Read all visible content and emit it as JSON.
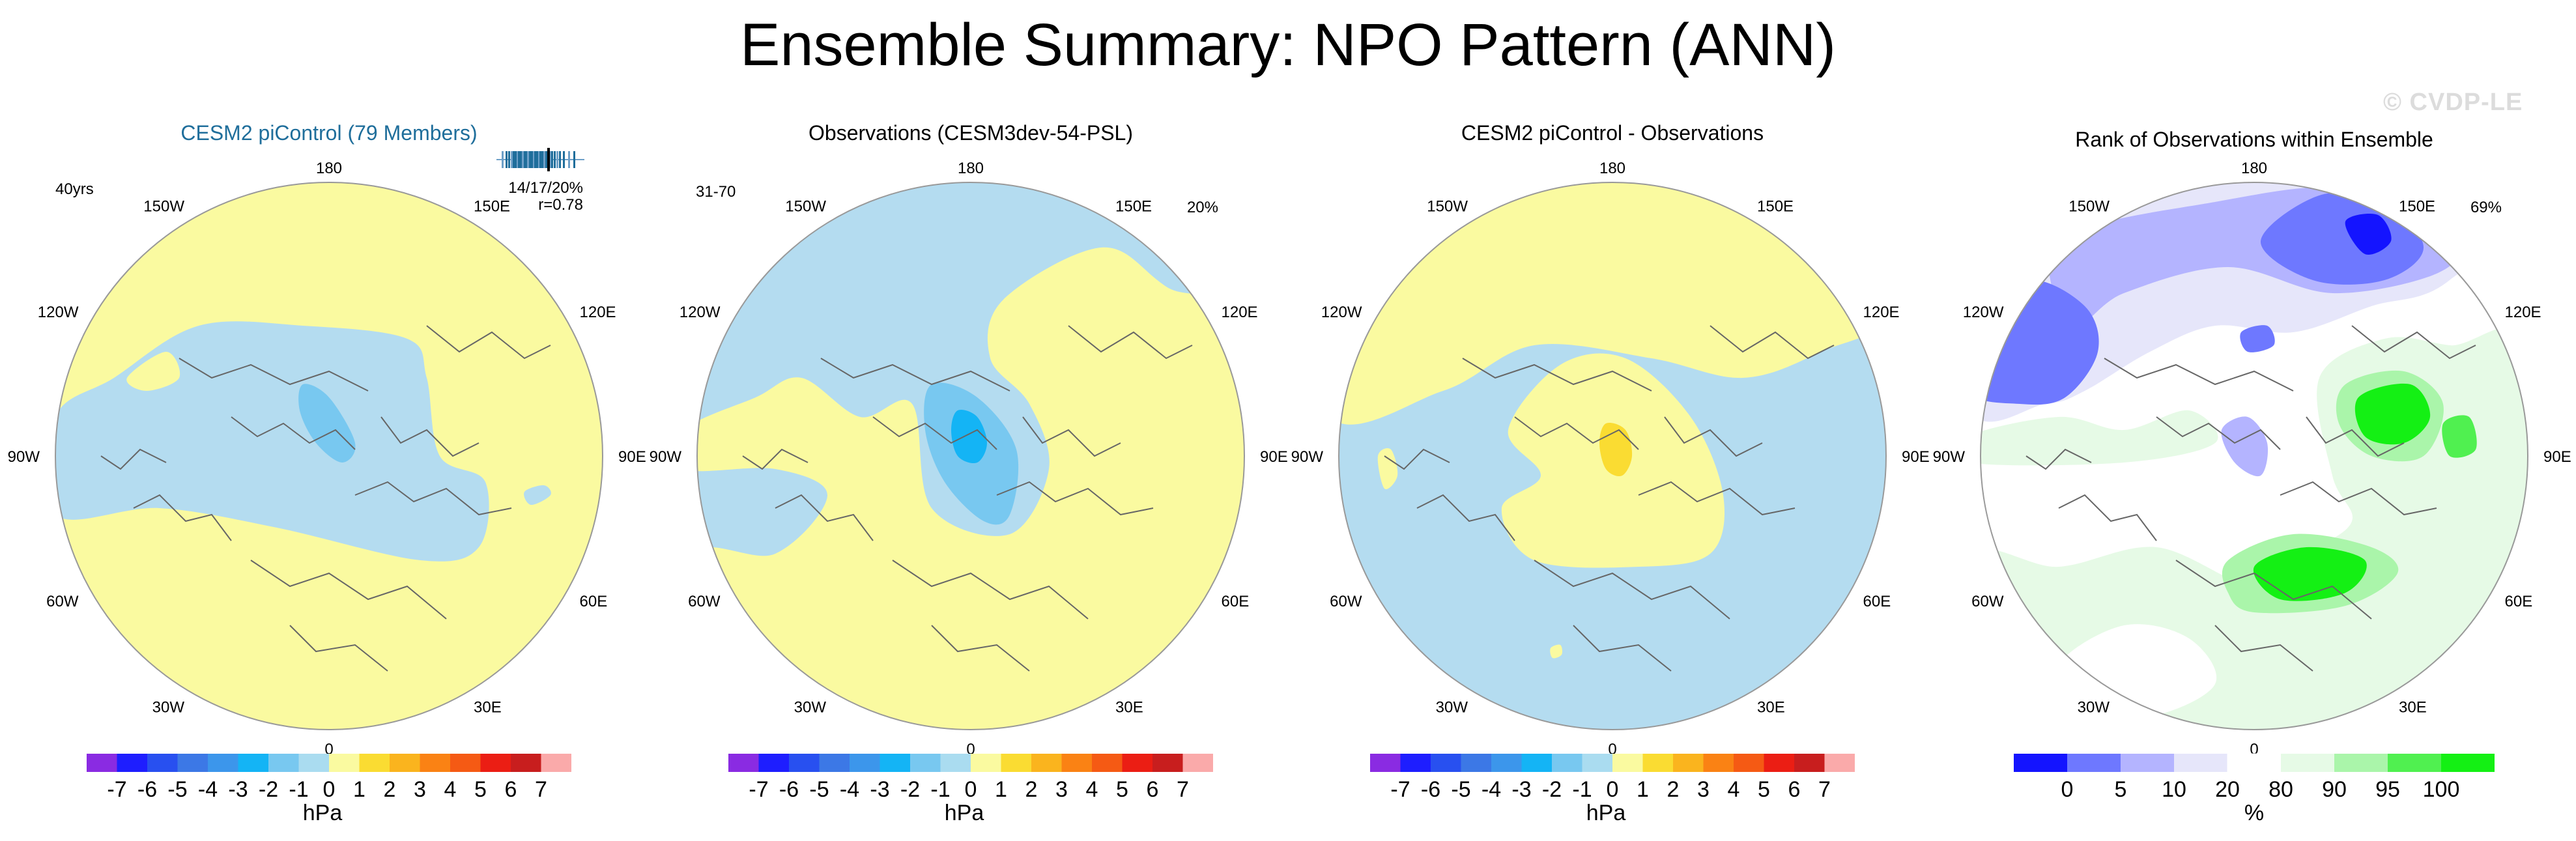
{
  "title": "Ensemble Summary: NPO Pattern (ANN)",
  "watermark": "© CVDP-LE",
  "colors": {
    "anom_levels": [
      "#8a2be2",
      "#1e1eff",
      "#2850f0",
      "#3c78e6",
      "#3c96eb",
      "#14b4f5",
      "#78c8f0",
      "#aadcf0",
      "#fafaa0",
      "#fadc32",
      "#fab41e",
      "#fa8214",
      "#f55a14",
      "#eb1e14",
      "#c81e1e",
      "#faaaaa"
    ],
    "rank_levels": [
      "#1414ff",
      "#6e78ff",
      "#b4b4ff",
      "#e6e6fa",
      "#ffffff",
      "#e6fae6",
      "#aaf5aa",
      "#50f050",
      "#14f014"
    ],
    "blue_fill": "#b4dcf0",
    "yellow_fill": "#fafaa0"
  },
  "panels": [
    {
      "title": "CESM2 piControl (79 Members)",
      "title_color": "#1f6e9b",
      "left_label": "40yrs",
      "right_label": "",
      "stat_line1": "14/17/20%",
      "stat_line2": "r=0.78"
    },
    {
      "title": "Observations (CESM3dev-54-PSL)",
      "title_color": "#000000",
      "left_label": "31-70",
      "right_label": "20%",
      "stat_line1": "",
      "stat_line2": ""
    },
    {
      "title": "CESM2 piControl - Observations",
      "title_color": "#000000",
      "left_label": "",
      "right_label": "",
      "stat_line1": "",
      "stat_line2": ""
    },
    {
      "title": "Rank of Observations within Ensemble",
      "title_color": "#000000",
      "left_label": "",
      "right_label": "69%",
      "stat_line1": "",
      "stat_line2": ""
    }
  ],
  "map_labels": [
    "180",
    "150E",
    "120E",
    "90E",
    "60E",
    "30E",
    "0",
    "30W",
    "60W",
    "90W",
    "120W",
    "150W"
  ],
  "anom_colorbar": {
    "tick_labels": [
      "-7",
      "-6",
      "-5",
      "-4",
      "-3",
      "-2",
      "-1",
      "0",
      "1",
      "2",
      "3",
      "4",
      "5",
      "6",
      "7"
    ],
    "units": "hPa"
  },
  "rank_colorbar": {
    "tick_labels": [
      "0",
      "5",
      "10",
      "20",
      "80",
      "90",
      "95",
      "100"
    ],
    "units": "%"
  },
  "chart_data": [
    {
      "type": "heatmap",
      "title": "CESM2 piControl (79 Members)",
      "units": "hPa",
      "contour_levels": [
        -7,
        -6,
        -5,
        -4,
        -3,
        -2,
        -1,
        0,
        1,
        2,
        3,
        4,
        5,
        6,
        7
      ],
      "summary": {
        "min_center_hPa": -1.5,
        "max_hPa": 0.5,
        "pattern_correlation": 0.78
      }
    },
    {
      "type": "heatmap",
      "title": "Observations (CESM3dev-54-PSL)",
      "units": "hPa",
      "contour_levels": [
        -7,
        -6,
        -5,
        -4,
        -3,
        -2,
        -1,
        0,
        1,
        2,
        3,
        4,
        5,
        6,
        7
      ],
      "summary": {
        "min_center_hPa": -2.5,
        "max_hPa": 0.5,
        "period": "31-70",
        "variance_explained_pct": 20
      }
    },
    {
      "type": "heatmap",
      "title": "CESM2 piControl - Observations",
      "units": "hPa",
      "contour_levels": [
        -7,
        -6,
        -5,
        -4,
        -3,
        -2,
        -1,
        0,
        1,
        2,
        3,
        4,
        5,
        6,
        7
      ],
      "summary": {
        "max_center_hPa": 1.5,
        "min_hPa": -0.5
      }
    },
    {
      "type": "heatmap",
      "title": "Rank of Observations within Ensemble",
      "units": "%",
      "contour_levels": [
        0,
        5,
        10,
        20,
        80,
        90,
        95,
        100
      ],
      "summary": {
        "pct_area_within_10_90": 69
      }
    }
  ]
}
